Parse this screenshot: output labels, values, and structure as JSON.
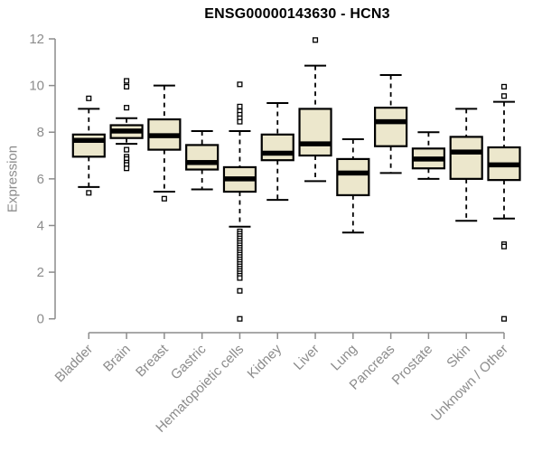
{
  "window": {
    "background": "#ffffff"
  },
  "chart_data": {
    "type": "boxplot",
    "title": "ENSG00000143630 - HCN3",
    "ylabel": "Expression",
    "xlabel": "",
    "ylim": [
      0,
      12
    ],
    "yticks": [
      "0",
      "2",
      "4",
      "6",
      "8",
      "10",
      "12"
    ],
    "grid": false,
    "legend": false,
    "colors": {
      "box_fill": "#ece7cc",
      "box_border": "#000000",
      "median": "#000000",
      "whisker": "#000000",
      "outlier_stroke": "#000000",
      "outlier_fill": "#ffffff",
      "axis": "#8c8c8c",
      "tick_label": "#8c8c8c",
      "title": "#000000"
    },
    "categories": [
      "Bladder",
      "Brain",
      "Breast",
      "Gastric",
      "Hematopoietic cells",
      "Kidney",
      "Liver",
      "Lung",
      "Pancreas",
      "Prostate",
      "Skin",
      "Unknown / Other"
    ],
    "series": [
      {
        "category": "Bladder",
        "low": 5.65,
        "q1": 6.95,
        "median": 7.65,
        "q3": 7.9,
        "high": 9.0,
        "outliers": [
          9.45,
          5.4
        ]
      },
      {
        "category": "Brain",
        "low": 7.5,
        "q1": 7.75,
        "median": 8.05,
        "q3": 8.3,
        "high": 8.6,
        "outliers": [
          10.2,
          9.95,
          9.05,
          7.25,
          6.95,
          6.85,
          6.7,
          6.6,
          6.45
        ]
      },
      {
        "category": "Breast",
        "low": 5.45,
        "q1": 7.25,
        "median": 7.85,
        "q3": 8.55,
        "high": 10.0,
        "outliers": [
          5.15
        ]
      },
      {
        "category": "Gastric",
        "low": 5.55,
        "q1": 6.4,
        "median": 6.7,
        "q3": 7.45,
        "high": 8.05,
        "outliers": []
      },
      {
        "category": "Hematopoietic cells",
        "low": 3.95,
        "q1": 5.45,
        "median": 6.0,
        "q3": 6.5,
        "high": 8.05,
        "outliers": [
          10.05,
          9.1,
          8.9,
          8.75,
          8.6,
          8.45,
          3.75,
          3.65,
          3.55,
          3.45,
          3.35,
          3.25,
          3.15,
          3.05,
          2.95,
          2.85,
          2.75,
          2.65,
          2.55,
          2.45,
          2.35,
          2.25,
          2.15,
          2.05,
          1.95,
          1.85,
          1.75,
          1.2,
          0.0
        ]
      },
      {
        "category": "Kidney",
        "low": 5.1,
        "q1": 6.8,
        "median": 7.1,
        "q3": 7.9,
        "high": 9.25,
        "outliers": []
      },
      {
        "category": "Liver",
        "low": 5.9,
        "q1": 7.0,
        "median": 7.5,
        "q3": 9.0,
        "high": 10.85,
        "outliers": [
          11.95
        ]
      },
      {
        "category": "Lung",
        "low": 3.7,
        "q1": 5.3,
        "median": 6.25,
        "q3": 6.85,
        "high": 7.7,
        "outliers": []
      },
      {
        "category": "Pancreas",
        "low": 6.25,
        "q1": 7.4,
        "median": 8.45,
        "q3": 9.05,
        "high": 10.45,
        "outliers": []
      },
      {
        "category": "Prostate",
        "low": 6.0,
        "q1": 6.45,
        "median": 6.85,
        "q3": 7.3,
        "high": 8.0,
        "outliers": []
      },
      {
        "category": "Skin",
        "low": 4.2,
        "q1": 6.0,
        "median": 7.15,
        "q3": 7.8,
        "high": 9.0,
        "outliers": []
      },
      {
        "category": "Unknown / Other",
        "low": 4.3,
        "q1": 5.95,
        "median": 6.6,
        "q3": 7.35,
        "high": 9.3,
        "outliers": [
          9.95,
          9.55,
          3.2,
          3.1,
          0.0
        ]
      }
    ]
  }
}
